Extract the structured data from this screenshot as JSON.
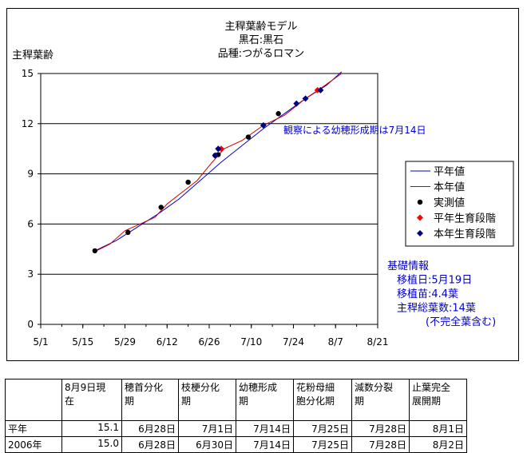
{
  "chart_data": {
    "type": "line",
    "title_lines": [
      "主稈葉齢モデル",
      "黒石:黒石",
      "品種:つがるロマン"
    ],
    "ylabel": "主稈葉齢",
    "xlabel": "",
    "x_ticks": [
      "5/1",
      "5/15",
      "5/29",
      "6/12",
      "6/26",
      "7/10",
      "7/24",
      "8/7",
      "8/21"
    ],
    "x_is_date": true,
    "xlim": [
      "5/1",
      "8/21"
    ],
    "y_ticks": [
      "0",
      "3",
      "6",
      "9",
      "12",
      "15"
    ],
    "ylim": [
      0,
      15
    ],
    "grid": "horizontal",
    "legend_position": "right",
    "series": [
      {
        "name": "平年値",
        "kind": "line",
        "color": "#0000cc",
        "points": [
          [
            "5/19",
            4.4
          ],
          [
            "5/26",
            5.0
          ],
          [
            "6/2",
            5.8
          ],
          [
            "6/9",
            6.6
          ],
          [
            "6/16",
            7.5
          ],
          [
            "6/23",
            8.6
          ],
          [
            "6/30",
            9.7
          ],
          [
            "7/7",
            10.7
          ],
          [
            "7/14",
            11.7
          ],
          [
            "7/21",
            12.6
          ],
          [
            "7/28",
            13.5
          ],
          [
            "8/4",
            14.3
          ],
          [
            "8/9",
            15.1
          ]
        ]
      },
      {
        "name": "本年値",
        "kind": "line",
        "color": "#cc0000",
        "points": [
          [
            "5/19",
            4.35
          ],
          [
            "5/24",
            4.8
          ],
          [
            "5/29",
            5.6
          ],
          [
            "6/3",
            6.0
          ],
          [
            "6/8",
            6.4
          ],
          [
            "6/12",
            7.2
          ],
          [
            "6/17",
            7.9
          ],
          [
            "6/22",
            8.6
          ],
          [
            "6/27",
            9.7
          ],
          [
            "7/1",
            10.5
          ],
          [
            "7/7",
            11.0
          ],
          [
            "7/14",
            11.9
          ],
          [
            "7/21",
            12.5
          ],
          [
            "7/28",
            13.5
          ],
          [
            "8/2",
            14.1
          ],
          [
            "8/9",
            15.0
          ]
        ]
      },
      {
        "name": "実測値",
        "kind": "marker",
        "marker": "circle",
        "color": "#000000",
        "points": [
          [
            "5/19",
            4.4
          ],
          [
            "5/30",
            5.5
          ],
          [
            "6/10",
            7.0
          ],
          [
            "6/19",
            8.5
          ],
          [
            "6/28",
            10.1
          ],
          [
            "6/29",
            10.15
          ],
          [
            "7/9",
            11.2
          ],
          [
            "7/19",
            12.6
          ]
        ]
      },
      {
        "name": "平年生育段階",
        "kind": "marker",
        "marker": "diamond",
        "color": "#ff0000",
        "points": [
          [
            "6/30",
            10.5
          ],
          [
            "8/1",
            14.0
          ]
        ]
      },
      {
        "name": "本年生育段階",
        "kind": "marker",
        "marker": "diamond",
        "color": "#000080",
        "points": [
          [
            "6/28",
            10.1
          ],
          [
            "6/29",
            10.5
          ],
          [
            "7/14",
            11.9
          ],
          [
            "7/25",
            13.2
          ],
          [
            "7/28",
            13.5
          ],
          [
            "8/2",
            14.0
          ]
        ]
      }
    ],
    "annotation": "観察による幼穂形成期は7月14日",
    "annotation_color": "#0000cc",
    "info_lines": [
      "基礎情報",
      "移植日:5月19日",
      "移植苗:4.4葉",
      "主稈総葉数:14葉",
      "(不完全葉含む)"
    ],
    "info_color": "#0000cc"
  },
  "table": {
    "headers": [
      "",
      "8月9日現在",
      "穂首分化期",
      "枝梗分化期",
      "幼穂形成期",
      "花粉母細胞分化期",
      "減数分裂期",
      "止葉完全展開期"
    ],
    "header_lines": [
      [
        ""
      ],
      [
        "8月9日現",
        "在"
      ],
      [
        "穂首分化",
        "期"
      ],
      [
        "枝梗分化",
        "期"
      ],
      [
        "幼穂形成",
        "期"
      ],
      [
        "花粉母細",
        "胞分化期"
      ],
      [
        "減数分裂",
        "期"
      ],
      [
        "止葉完全",
        "展開期"
      ]
    ],
    "rows": [
      [
        "平年",
        "15.1",
        "6月28日",
        "7月1日",
        "7月14日",
        "7月25日",
        "7月28日",
        "8月1日"
      ],
      [
        "2006年",
        "15.0",
        "6月28日",
        "6月30日",
        "7月14日",
        "7月25日",
        "7月28日",
        "8月2日"
      ]
    ]
  }
}
